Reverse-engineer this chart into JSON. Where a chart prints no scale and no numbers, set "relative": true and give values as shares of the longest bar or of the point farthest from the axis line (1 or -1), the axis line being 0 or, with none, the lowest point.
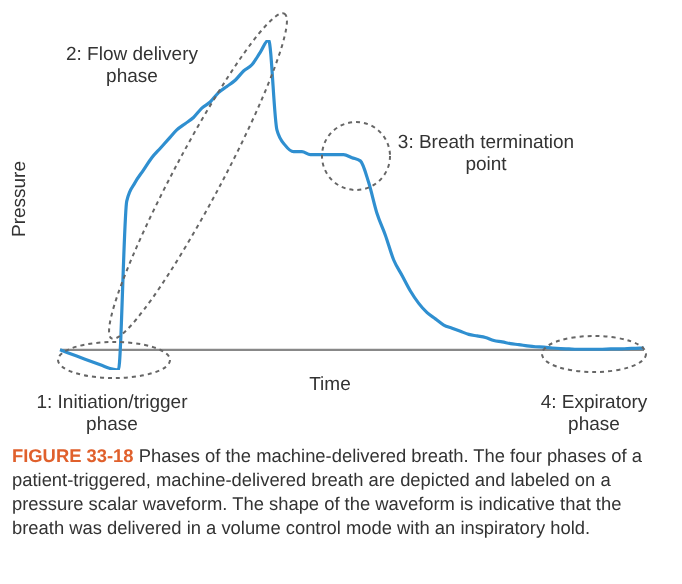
{
  "chart_data": {
    "type": "line",
    "relative": true,
    "xlabel": "Time",
    "ylabel": "Pressure",
    "categories": [
      null,
      null,
      null,
      null,
      null,
      null,
      null,
      null,
      null,
      null,
      null,
      null,
      null,
      null,
      null,
      null,
      null,
      null,
      null,
      null,
      null,
      null,
      null,
      null,
      null,
      null,
      null,
      null,
      null,
      null,
      null,
      null,
      null,
      null,
      null,
      null,
      null,
      null,
      null,
      null,
      null,
      null,
      null,
      null,
      null,
      null,
      null,
      null,
      null,
      null,
      null,
      null,
      null,
      null,
      null,
      null,
      null,
      null,
      null,
      null,
      null,
      null,
      null,
      null,
      null,
      null,
      null,
      null,
      null,
      null,
      null
    ],
    "series": [
      {
        "color": "#2f8fd0",
        "values": [
          0,
          -0.01,
          -0.02,
          -0.03,
          -0.04,
          -0.05,
          -0.06,
          -0.065,
          0.48,
          0.54,
          0.58,
          0.62,
          0.65,
          0.68,
          0.71,
          0.73,
          0.75,
          0.78,
          0.8,
          0.83,
          0.85,
          0.87,
          0.9,
          0.92,
          0.96,
          1,
          0.71,
          0.66,
          0.64,
          0.64,
          0.63,
          0.63,
          0.63,
          0.63,
          0.63,
          0.62,
          0.61,
          0.54,
          0.44,
          0.37,
          0.29,
          0.24,
          0.19,
          0.15,
          0.12,
          0.1,
          0.08,
          0.07,
          0.06,
          0.05,
          0.045,
          0.04,
          0.03,
          0.026,
          0.02,
          0.017,
          0.013,
          0.01,
          0.009,
          0.006,
          0.004,
          0.003,
          0.002,
          0.002,
          0.002,
          0.002,
          0.003,
          0.003,
          0.004,
          0.005,
          0.006
        ]
      }
    ],
    "marker": "none",
    "grid": false,
    "legend": false,
    "annotations": [
      "1: Initiation/trigger phase",
      "2: Flow delivery phase",
      "3: Breath termination point",
      "4: Expiratory phase",
      "FIGURE 33-18",
      "Phases of the machine-delivered breath. The four phases of a patient-triggered, machine-delivered breath are depicted and labeled on a pressure scalar waveform. The shape of the waveform is indicative that the breath was delivered in a volume control mode with an inspiratory hold."
    ]
  }
}
